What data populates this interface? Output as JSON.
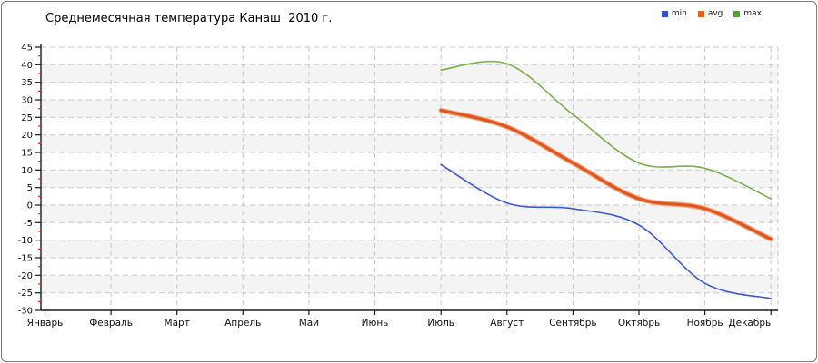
{
  "title": "Среднемесячная температура Канаш  2010 г.",
  "legend": {
    "position": "top-right",
    "items": [
      {
        "label": "min",
        "color": "#2d54ce"
      },
      {
        "label": "avg",
        "color": "#e4601f"
      },
      {
        "label": "max",
        "color": "#4aa32e"
      }
    ]
  },
  "chart_data": {
    "type": "line",
    "smoothed": true,
    "title": "Среднемесячная температура Канаш  2010 г.",
    "categories": [
      "Январь",
      "Февраль",
      "Март",
      "Апрель",
      "Май",
      "Июнь",
      "Июль",
      "Август",
      "Сентябрь",
      "Октябрь",
      "Ноябрь",
      "Декабрь"
    ],
    "series": [
      {
        "name": "min",
        "color": "#3c5ad2",
        "line_width": 1.6,
        "values": [
          null,
          null,
          null,
          null,
          null,
          null,
          11.5,
          0.6,
          -1.0,
          -5.7,
          -22.3,
          -26.6
        ]
      },
      {
        "name": "avg",
        "color": "#e0561f",
        "halo_color": "#f2a87f",
        "line_width": 3.2,
        "values": [
          null,
          null,
          null,
          null,
          null,
          null,
          27.0,
          22.3,
          12.0,
          1.8,
          -1.0,
          -9.7
        ]
      },
      {
        "name": "max",
        "color": "#76b04a",
        "line_width": 1.6,
        "values": [
          null,
          null,
          null,
          null,
          null,
          null,
          38.5,
          40.3,
          25.8,
          12.0,
          10.5,
          1.8
        ]
      }
    ],
    "ylim": [
      -30,
      45
    ],
    "y_step": 5,
    "xlabel": "",
    "ylabel": "",
    "grid": {
      "dashed": true,
      "color": "#c9c9c9",
      "stripe_colors": [
        "#ffffff",
        "#f4f4f4"
      ]
    },
    "axis_color": "#1a1a1a",
    "minor_tick_color": "#d93025",
    "legend_position": "top-right"
  }
}
